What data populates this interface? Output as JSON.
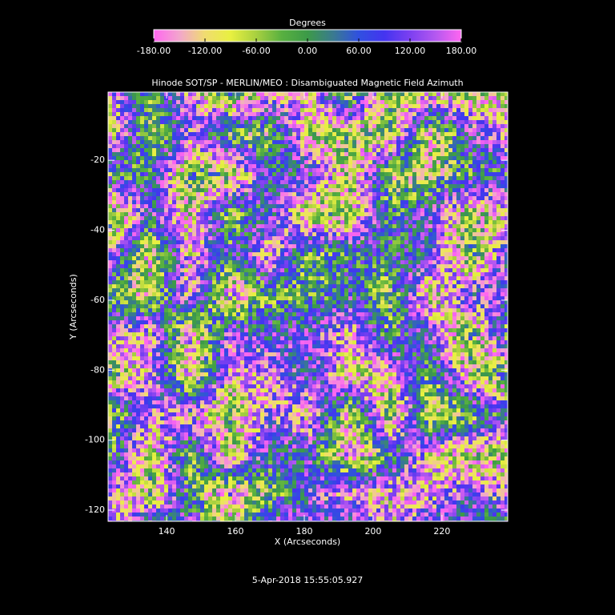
{
  "chart_data": {
    "type": "heatmap",
    "title": "Hinode SOT/SP - MERLIN/MEO : Disambiguated Magnetic Field Azimuth",
    "xlabel": "X (Arcseconds)",
    "ylabel": "Y (Arcseconds)",
    "date": "5-Apr-2018 15:55:05.927",
    "xlim": [
      123,
      239.1
    ],
    "ylim": [
      -123.2,
      -0.5
    ],
    "xticks": [
      140,
      160,
      180,
      200,
      220
    ],
    "yticks": [
      -20,
      -40,
      -60,
      -80,
      -100,
      -120
    ],
    "colorbar": {
      "title": "Degrees",
      "clim": [
        -180,
        180
      ],
      "ticks": [
        {
          "value": -180,
          "label": "-180.00"
        },
        {
          "value": -120,
          "label": "-120.00"
        },
        {
          "value": -60,
          "label": "-60.00"
        },
        {
          "value": 0,
          "label": "0.00"
        },
        {
          "value": 60,
          "label": "60.00"
        },
        {
          "value": 120,
          "label": "120.00"
        },
        {
          "value": 180,
          "label": "180.00"
        }
      ],
      "colormap": [
        "#ff66f0",
        "#f2a6cc",
        "#f0dc70",
        "#e8f040",
        "#a8d040",
        "#58b040",
        "#3c9a48",
        "#3a7a90",
        "#3050e0",
        "#4434f0",
        "#7c40f0",
        "#b458f0",
        "#ff66f0"
      ]
    }
  }
}
